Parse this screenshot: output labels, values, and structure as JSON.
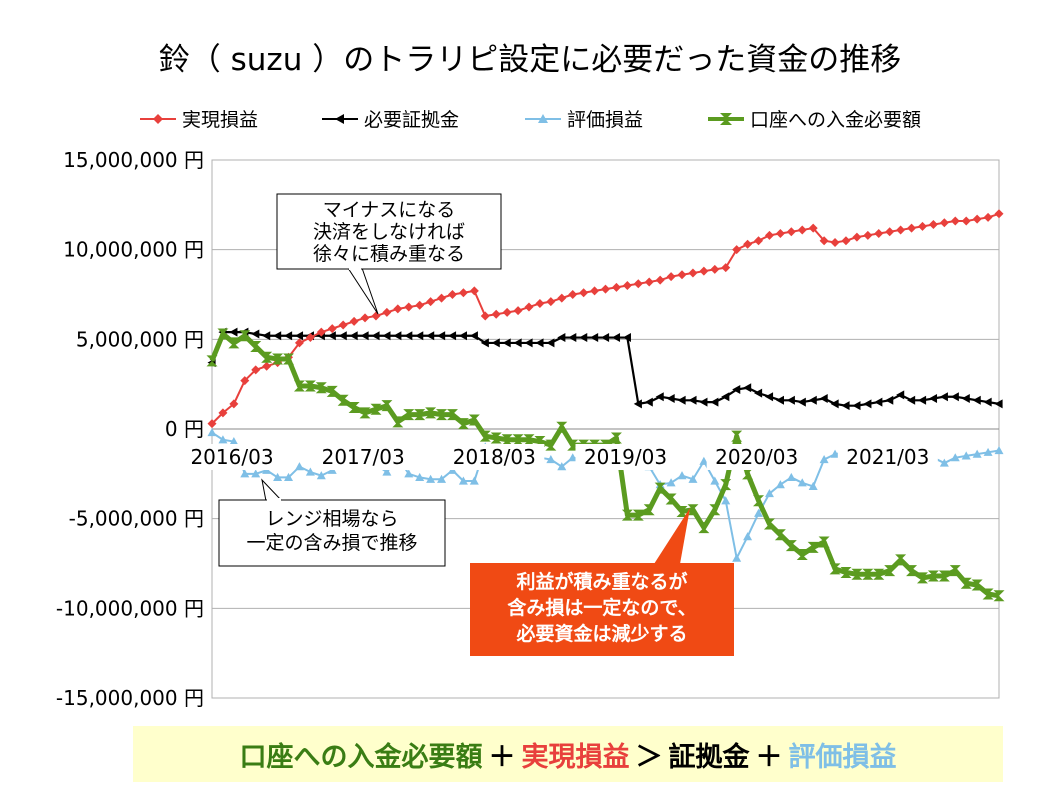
{
  "chart_data": {
    "type": "line",
    "title": "鈴（ suzu ）のトラリピ設定に必要だった資金の推移",
    "y_unit": "円",
    "ylim": [
      -15000000,
      15000000
    ],
    "y_ticks": [
      15000000,
      10000000,
      5000000,
      0,
      -5000000,
      -10000000,
      -15000000
    ],
    "y_tick_labels": [
      "15,000,000 円",
      "10,000,000 円",
      "5,000,000 円",
      "0 円",
      "-5,000,000 円",
      "-10,000,000 円",
      "-15,000,000 円"
    ],
    "x_start": "2016/03",
    "x_tick_labels": [
      "2016/03",
      "2017/03",
      "2018/03",
      "2019/03",
      "2020/03",
      "2021/03"
    ],
    "x_tick_months": [
      0,
      12,
      24,
      36,
      48,
      60
    ],
    "months_total": 72,
    "series": [
      {
        "name": "実現損益",
        "color": "#e8403c",
        "marker": "diamond",
        "values": [
          300000,
          900000,
          1400000,
          2700000,
          3300000,
          3500000,
          3700000,
          4000000,
          4800000,
          5100000,
          5400000,
          5600000,
          5800000,
          6000000,
          6200000,
          6300000,
          6500000,
          6700000,
          6800000,
          6900000,
          7100000,
          7300000,
          7500000,
          7600000,
          7700000,
          6300000,
          6400000,
          6500000,
          6600000,
          6800000,
          7000000,
          7100000,
          7300000,
          7500000,
          7600000,
          7700000,
          7800000,
          7900000,
          8000000,
          8100000,
          8200000,
          8300000,
          8500000,
          8600000,
          8700000,
          8800000,
          8900000,
          9000000,
          10000000,
          10300000,
          10500000,
          10800000,
          10900000,
          11000000,
          11100000,
          11200000,
          10500000,
          10400000,
          10500000,
          10700000,
          10800000,
          10900000,
          11000000,
          11100000,
          11200000,
          11300000,
          11400000,
          11500000,
          11600000,
          11600000,
          11700000,
          11800000,
          12000000
        ]
      },
      {
        "name": "必要証拠金",
        "color": "#000000",
        "marker": "triangle-left",
        "values": [
          3700000,
          5400000,
          5400000,
          5400000,
          5300000,
          5200000,
          5200000,
          5200000,
          5200000,
          5200000,
          5200000,
          5200000,
          5200000,
          5200000,
          5200000,
          5200000,
          5200000,
          5200000,
          5200000,
          5200000,
          5200000,
          5200000,
          5200000,
          5200000,
          5200000,
          4800000,
          4800000,
          4800000,
          4800000,
          4800000,
          4800000,
          4800000,
          5100000,
          5100000,
          5100000,
          5100000,
          5100000,
          5100000,
          5100000,
          1400000,
          1500000,
          1800000,
          1700000,
          1600000,
          1600000,
          1500000,
          1500000,
          1800000,
          2200000,
          2300000,
          2000000,
          1800000,
          1600000,
          1600000,
          1500000,
          1600000,
          1700000,
          1400000,
          1300000,
          1300000,
          1400000,
          1500000,
          1600000,
          1900000,
          1600000,
          1600000,
          1700000,
          1800000,
          1800000,
          1700000,
          1600000,
          1500000,
          1400000
        ]
      },
      {
        "name": "評価損益",
        "color": "#7fbfe6",
        "marker": "triangle-up",
        "values": [
          -200000,
          -600000,
          -700000,
          -2500000,
          -2500000,
          -2300000,
          -2700000,
          -2700000,
          -2100000,
          -2400000,
          -2600000,
          -2300000,
          -2000000,
          -1900000,
          -1900000,
          -2000000,
          -2400000,
          -1600000,
          -2500000,
          -2700000,
          -2800000,
          -2800000,
          -2300000,
          -2900000,
          -2900000,
          -1000000,
          -1200000,
          -1300000,
          -1500000,
          -1500000,
          -1600000,
          -1700000,
          -2100000,
          -1600000,
          -1700000,
          -1700000,
          -1800000,
          -1900000,
          -1800000,
          -1900000,
          -2100000,
          -3100000,
          -3000000,
          -2600000,
          -2800000,
          -1800000,
          -2900000,
          -4000000,
          -7200000,
          -6000000,
          -4700000,
          -3600000,
          -3100000,
          -2700000,
          -3000000,
          -3200000,
          -1700000,
          -1400000,
          -1300000,
          -1200000,
          -1300000,
          -1400000,
          -1700000,
          -1600000,
          -1600000,
          -1500000,
          -1600000,
          -1900000,
          -1600000,
          -1500000,
          -1400000,
          -1300000,
          -1200000
        ]
      },
      {
        "name": "口座への入金必要額",
        "color": "#5b9b20",
        "marker": "bowtie",
        "values": [
          3800000,
          5300000,
          4800000,
          5200000,
          4600000,
          4000000,
          3900000,
          3900000,
          2400000,
          2400000,
          2300000,
          2100000,
          1600000,
          1200000,
          900000,
          1100000,
          1300000,
          400000,
          800000,
          800000,
          900000,
          800000,
          800000,
          300000,
          500000,
          -400000,
          -500000,
          -600000,
          -600000,
          -600000,
          -700000,
          -900000,
          100000,
          -900000,
          -900000,
          -900000,
          -900000,
          -500000,
          -4800000,
          -4800000,
          -4500000,
          -3300000,
          -3900000,
          -4600000,
          -4500000,
          -5500000,
          -4500000,
          -3100000,
          -400000,
          -2500000,
          -4000000,
          -5300000,
          -5900000,
          -6500000,
          -7000000,
          -6600000,
          -6300000,
          -7800000,
          -8000000,
          -8100000,
          -8100000,
          -8100000,
          -7900000,
          -7300000,
          -7900000,
          -8300000,
          -8200000,
          -8200000,
          -7900000,
          -8600000,
          -8700000,
          -9200000,
          -9300000
        ]
      }
    ],
    "annotations": [
      {
        "id": "realized",
        "lines": [
          "マイナスになる",
          "決済をしなければ",
          "徐々に積み重なる"
        ]
      },
      {
        "id": "range",
        "lines": [
          "レンジ相場なら",
          "一定の含み損で推移"
        ]
      },
      {
        "id": "profit",
        "lines": [
          "利益が積み重なるが",
          "含み損は一定なので、",
          "必要資金は減少する"
        ],
        "bg_color": "#f04a14"
      }
    ]
  },
  "formula": {
    "part1": "口座への入金必要額",
    "op1": "＋",
    "part2": "実現損益",
    "op2": "＞",
    "part3": "証拠金",
    "op3": "＋",
    "part4": "評価損益",
    "color1": "#3a7d14",
    "color2": "#e8403c",
    "color3": "#000000",
    "color4": "#7fbfe6"
  }
}
